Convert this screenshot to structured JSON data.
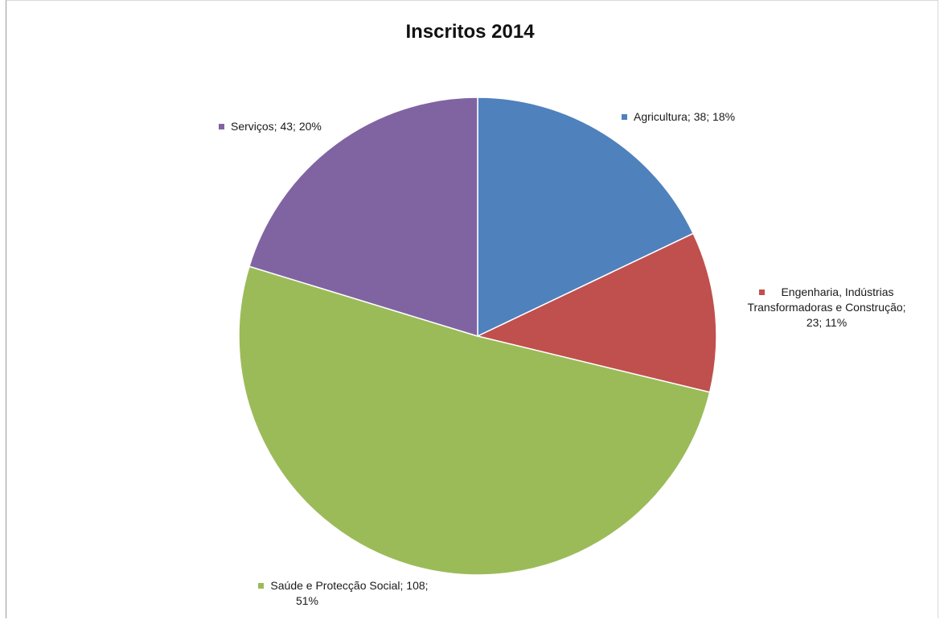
{
  "chart_data": {
    "type": "pie",
    "title": "Inscritos 2014",
    "slices": [
      {
        "name": "Agricultura",
        "value": 38,
        "percent": "18%",
        "label": "Agricultura; 38; 18%",
        "color": "#4F81BD"
      },
      {
        "name": "Engenharia, Indústrias Transformadoras e Construção",
        "value": 23,
        "percent": "11%",
        "label_lines": [
          "Engenharia, Indústrias",
          "Transformadoras e Construção;",
          "23; 11%"
        ],
        "color": "#C0504D"
      },
      {
        "name": "Saúde e Protecção Social",
        "value": 108,
        "percent": "51%",
        "label_lines": [
          "Saúde e Protecção Social; 108;",
          "51%"
        ],
        "color": "#9BBB59"
      },
      {
        "name": "Serviços",
        "value": 43,
        "percent": "20%",
        "label": "Serviços; 43; 20%",
        "color": "#8064A2"
      }
    ]
  }
}
